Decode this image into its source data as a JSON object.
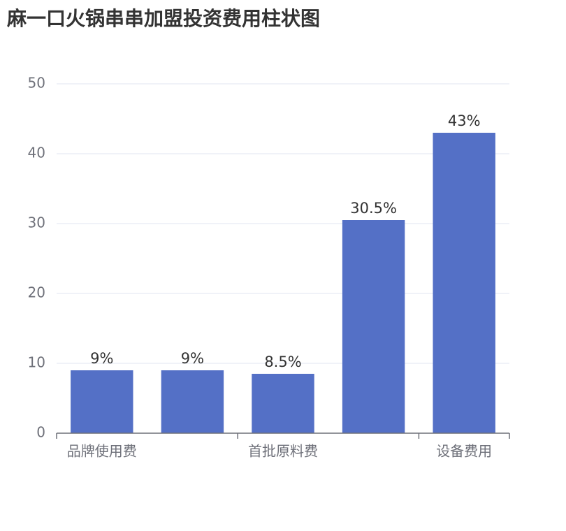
{
  "chart_data": {
    "type": "bar",
    "title": "麻一口火锅串串加盟投资费用柱状图",
    "categories": [
      "品牌使用费",
      null,
      "首批原料费",
      null,
      "设备费用"
    ],
    "values": [
      9,
      9,
      8.5,
      30.5,
      43
    ],
    "value_labels": [
      "9%",
      "9%",
      "8.5%",
      "30.5%",
      "43%"
    ],
    "color": "#5470c6",
    "ylim": [
      0,
      50
    ],
    "yticks": [
      0,
      10,
      20,
      30,
      40,
      50
    ],
    "grid": true
  }
}
